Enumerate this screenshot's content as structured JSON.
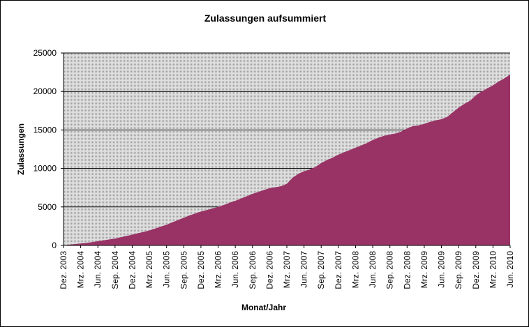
{
  "chart_data": {
    "type": "area",
    "title": "Zulassungen aufsummiert",
    "x_label": "Monat/Jahr",
    "y_label": "Zulassungen",
    "categories": [
      "Dez. 2003",
      null,
      null,
      "Mrz. 2004",
      null,
      null,
      "Jun. 2004",
      null,
      null,
      "Sep. 2004",
      null,
      null,
      "Dez. 2004",
      null,
      null,
      "Mrz. 2005",
      null,
      null,
      "Jun. 2005",
      null,
      null,
      "Sep. 2005",
      null,
      null,
      "Dez. 2005",
      null,
      null,
      "Mrz. 2006",
      null,
      null,
      "Jun. 2006",
      null,
      null,
      "Sep. 2006",
      null,
      null,
      "Dez. 2006",
      null,
      null,
      "Mrz. 2007",
      null,
      null,
      "Jun. 2007",
      null,
      null,
      "Sep. 2007",
      null,
      null,
      "Dez. 2007",
      null,
      null,
      "Mrz. 2008",
      null,
      null,
      "Jun. 2008",
      null,
      null,
      "Sep. 2008",
      null,
      null,
      "Dez. 2008",
      null,
      null,
      "Mrz. 2009",
      null,
      null,
      "Jun. 2009",
      null,
      null,
      "Sep. 2009",
      null,
      null,
      "Dez. 2009",
      null,
      null,
      "Mrz. 2010",
      null,
      null,
      "Jun. 2010"
    ],
    "values": [
      0,
      100,
      180,
      250,
      330,
      430,
      550,
      660,
      780,
      900,
      1060,
      1230,
      1400,
      1580,
      1770,
      1950,
      2200,
      2450,
      2700,
      3000,
      3300,
      3600,
      3900,
      4150,
      4400,
      4600,
      4800,
      5000,
      5250,
      5550,
      5800,
      6100,
      6400,
      6700,
      6950,
      7200,
      7450,
      7550,
      7700,
      8000,
      8800,
      9300,
      9650,
      9850,
      10200,
      10700,
      11100,
      11400,
      11800,
      12100,
      12400,
      12700,
      13000,
      13300,
      13700,
      14000,
      14250,
      14400,
      14550,
      14800,
      15200,
      15500,
      15600,
      15800,
      16050,
      16250,
      16400,
      16700,
      17300,
      17900,
      18400,
      18800,
      19500,
      20000,
      20400,
      20800,
      21300,
      21700,
      22200
    ],
    "color": "#993366",
    "ylim": [
      0,
      25000
    ],
    "yticks": [
      0,
      5000,
      10000,
      15000,
      20000,
      25000
    ],
    "grid": true
  }
}
